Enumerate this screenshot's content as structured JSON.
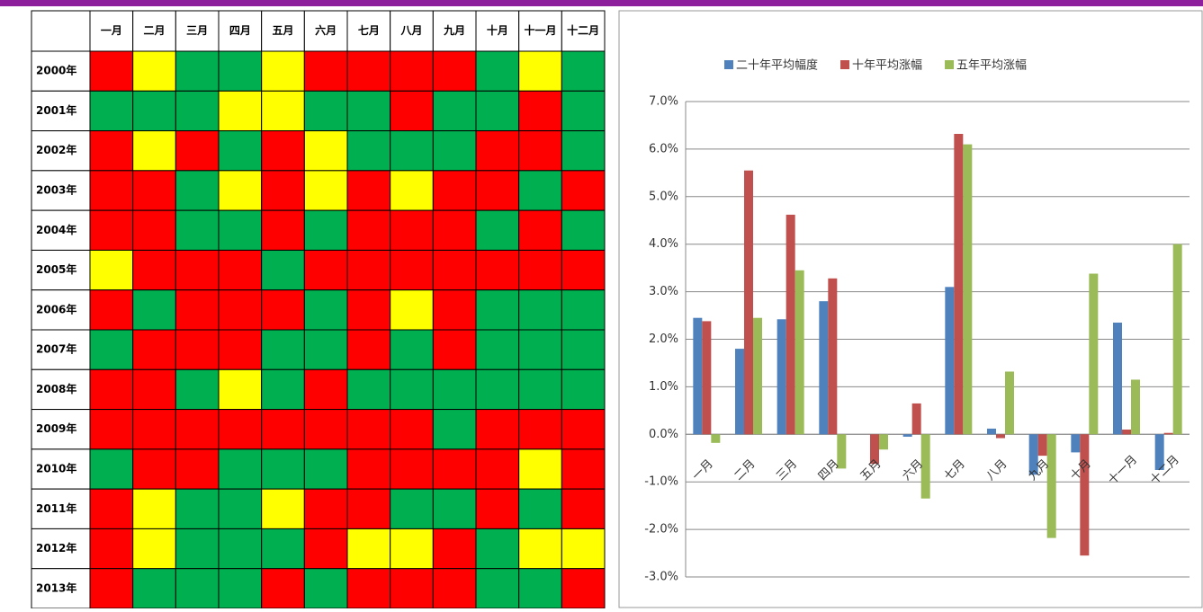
{
  "table": {
    "columns": [
      "一月",
      "二月",
      "三月",
      "四月",
      "五月",
      "六月",
      "七月",
      "八月",
      "九月",
      "十月",
      "十一月",
      "十二月"
    ],
    "rows": [
      {
        "label": "2000年",
        "cells": [
          "#ff0000",
          "#ffff00",
          "#00b050",
          "#00b050",
          "#ffff00",
          "#ff0000",
          "#ff0000",
          "#ff0000",
          "#ff0000",
          "#00b050",
          "#ffff00",
          "#00b050"
        ]
      },
      {
        "label": "2001年",
        "cells": [
          "#00b050",
          "#00b050",
          "#00b050",
          "#ffff00",
          "#ffff00",
          "#00b050",
          "#00b050",
          "#ff0000",
          "#00b050",
          "#00b050",
          "#ff0000",
          "#00b050"
        ]
      },
      {
        "label": "2002年",
        "cells": [
          "#ff0000",
          "#ffff00",
          "#ff0000",
          "#00b050",
          "#ff0000",
          "#ffff00",
          "#00b050",
          "#00b050",
          "#00b050",
          "#ff0000",
          "#ff0000",
          "#00b050"
        ]
      },
      {
        "label": "2003年",
        "cells": [
          "#ff0000",
          "#ff0000",
          "#00b050",
          "#ffff00",
          "#ff0000",
          "#ffff00",
          "#ff0000",
          "#ffff00",
          "#ff0000",
          "#ff0000",
          "#00b050",
          "#ff0000"
        ]
      },
      {
        "label": "2004年",
        "cells": [
          "#ff0000",
          "#ff0000",
          "#00b050",
          "#00b050",
          "#ff0000",
          "#00b050",
          "#ff0000",
          "#ff0000",
          "#ff0000",
          "#00b050",
          "#ff0000",
          "#00b050"
        ]
      },
      {
        "label": "2005年",
        "cells": [
          "#ffff00",
          "#ff0000",
          "#ff0000",
          "#ff0000",
          "#00b050",
          "#ff0000",
          "#ff0000",
          "#ff0000",
          "#ff0000",
          "#ff0000",
          "#ff0000",
          "#ff0000"
        ]
      },
      {
        "label": "2006年",
        "cells": [
          "#ff0000",
          "#00b050",
          "#ff0000",
          "#ff0000",
          "#ff0000",
          "#00b050",
          "#ff0000",
          "#ffff00",
          "#ff0000",
          "#00b050",
          "#00b050",
          "#00b050"
        ]
      },
      {
        "label": "2007年",
        "cells": [
          "#00b050",
          "#ff0000",
          "#ff0000",
          "#ff0000",
          "#00b050",
          "#00b050",
          "#ff0000",
          "#00b050",
          "#ff0000",
          "#00b050",
          "#00b050",
          "#00b050"
        ]
      },
      {
        "label": "2008年",
        "cells": [
          "#ff0000",
          "#ff0000",
          "#00b050",
          "#ffff00",
          "#00b050",
          "#ff0000",
          "#00b050",
          "#00b050",
          "#00b050",
          "#00b050",
          "#00b050",
          "#00b050"
        ]
      },
      {
        "label": "2009年",
        "cells": [
          "#ff0000",
          "#ff0000",
          "#ff0000",
          "#ff0000",
          "#ff0000",
          "#ff0000",
          "#ff0000",
          "#ff0000",
          "#00b050",
          "#ff0000",
          "#ff0000",
          "#ff0000"
        ]
      },
      {
        "label": "2010年",
        "cells": [
          "#00b050",
          "#ff0000",
          "#ff0000",
          "#00b050",
          "#00b050",
          "#00b050",
          "#ff0000",
          "#ff0000",
          "#ff0000",
          "#ff0000",
          "#ffff00",
          "#ff0000"
        ]
      },
      {
        "label": "2011年",
        "cells": [
          "#ff0000",
          "#ffff00",
          "#00b050",
          "#00b050",
          "#ffff00",
          "#ff0000",
          "#ff0000",
          "#00b050",
          "#00b050",
          "#ff0000",
          "#00b050",
          "#ff0000"
        ]
      },
      {
        "label": "2012年",
        "cells": [
          "#ff0000",
          "#ffff00",
          "#00b050",
          "#00b050",
          "#00b050",
          "#ff0000",
          "#ffff00",
          "#ffff00",
          "#ff0000",
          "#00b050",
          "#ffff00",
          "#ffff00"
        ]
      },
      {
        "label": "2013年",
        "cells": [
          "#ff0000",
          "#00b050",
          "#00b050",
          "#00b050",
          "#ff0000",
          "#00b050",
          "#ff0000",
          "#ff0000",
          "#ff0000",
          "#00b050",
          "#00b050",
          "#ff0000"
        ]
      }
    ]
  },
  "chart_data": {
    "type": "bar",
    "categories": [
      "一月",
      "二月",
      "三月",
      "四月",
      "五月",
      "六月",
      "七月",
      "八月",
      "九月",
      "十月",
      "十一月",
      "十二月"
    ],
    "series": [
      {
        "name": "二十年平均幅度",
        "color": "#4f81bd",
        "values": [
          2.45,
          1.8,
          2.42,
          2.8,
          0,
          -0.05,
          3.1,
          0.12,
          -0.85,
          -0.38,
          2.35,
          -0.75
        ]
      },
      {
        "name": "十年平均涨幅",
        "color": "#c0504d",
        "values": [
          2.38,
          5.55,
          4.62,
          3.28,
          -0.62,
          0.65,
          6.32,
          -0.08,
          -0.45,
          -2.55,
          0.1,
          0.03
        ]
      },
      {
        "name": "五年平均涨幅",
        "color": "#9bbb59",
        "values": [
          -0.18,
          2.45,
          3.45,
          -0.72,
          -0.32,
          -1.35,
          6.1,
          1.32,
          -2.18,
          3.38,
          1.15,
          4.0
        ]
      }
    ],
    "ylim": [
      -3,
      7
    ],
    "yticks": [
      {
        "value": -3,
        "label": "-3.0%"
      },
      {
        "value": -2,
        "label": "-2.0%"
      },
      {
        "value": -1,
        "label": "-1.0%"
      },
      {
        "value": 0,
        "label": "0.0%"
      },
      {
        "value": 1,
        "label": "1.0%"
      },
      {
        "value": 2,
        "label": "2.0%"
      },
      {
        "value": 3,
        "label": "3.0%"
      },
      {
        "value": 4,
        "label": "4.0%"
      },
      {
        "value": 5,
        "label": "5.0%"
      },
      {
        "value": 6,
        "label": "6.0%"
      },
      {
        "value": 7,
        "label": "7.0%"
      }
    ],
    "grid": true,
    "legend": "top"
  }
}
